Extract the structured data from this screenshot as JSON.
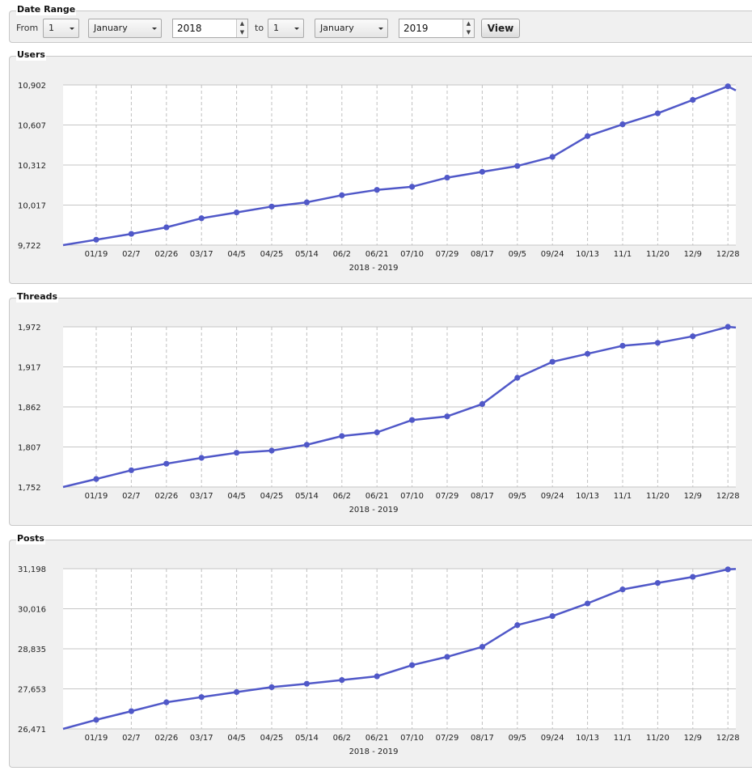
{
  "date_range": {
    "legend": "Date Range",
    "from_label": "From",
    "from_day": "1",
    "from_month": "January",
    "from_year": "2018",
    "to_label": "to",
    "to_day": "1",
    "to_month": "January",
    "to_year": "2019",
    "view_label": "View",
    "spin_up": "▲",
    "spin_down": "▼"
  },
  "x_ticks": [
    "01/19",
    "02/7",
    "02/26",
    "03/17",
    "04/5",
    "04/25",
    "05/14",
    "06/2",
    "06/21",
    "07/10",
    "07/29",
    "08/17",
    "09/5",
    "09/24",
    "10/13",
    "11/1",
    "11/20",
    "12/9",
    "12/28"
  ],
  "range_label": "2018 - 2019",
  "line_color": "#5058c8",
  "chart_data": [
    {
      "type": "line",
      "title": "Users",
      "xlabel": "2018 - 2019",
      "ylim": [
        9722,
        10902
      ],
      "y_ticks": [
        "10,902",
        "10,607",
        "10,312",
        "10,017",
        "9,722"
      ],
      "y_tick_values": [
        10902,
        10607,
        10312,
        10017,
        9722
      ],
      "grid": true,
      "points": [
        {
          "x": "01/01",
          "y": 9722
        },
        {
          "x": "01/19",
          "y": 9762
        },
        {
          "x": "02/7",
          "y": 9805
        },
        {
          "x": "02/26",
          "y": 9853
        },
        {
          "x": "03/17",
          "y": 9920
        },
        {
          "x": "04/5",
          "y": 9963
        },
        {
          "x": "04/25",
          "y": 10006
        },
        {
          "x": "05/14",
          "y": 10037
        },
        {
          "x": "06/2",
          "y": 10090
        },
        {
          "x": "06/21",
          "y": 10129
        },
        {
          "x": "07/10",
          "y": 10152
        },
        {
          "x": "07/29",
          "y": 10219
        },
        {
          "x": "08/17",
          "y": 10262
        },
        {
          "x": "09/5",
          "y": 10305
        },
        {
          "x": "09/24",
          "y": 10372
        },
        {
          "x": "10/13",
          "y": 10525
        },
        {
          "x": "11/1",
          "y": 10612
        },
        {
          "x": "11/20",
          "y": 10693
        },
        {
          "x": "12/9",
          "y": 10792
        },
        {
          "x": "12/28",
          "y": 10892
        },
        {
          "x": "12/31",
          "y": 10862
        }
      ],
      "markers": [
        "01/19",
        "02/7",
        "02/26",
        "03/17",
        "04/5",
        "04/25",
        "05/14",
        "06/2",
        "06/21",
        "07/10",
        "07/29",
        "08/17",
        "09/5",
        "09/24",
        "10/13",
        "11/1",
        "11/20",
        "12/9",
        "12/28"
      ]
    },
    {
      "type": "line",
      "title": "Threads",
      "xlabel": "2018 - 2019",
      "ylim": [
        1752,
        1972
      ],
      "y_ticks": [
        "1,972",
        "1,917",
        "1,862",
        "1,807",
        "1,752"
      ],
      "y_tick_values": [
        1972,
        1917,
        1862,
        1807,
        1752
      ],
      "grid": true,
      "points": [
        {
          "x": "01/01",
          "y": 1752
        },
        {
          "x": "01/19",
          "y": 1763
        },
        {
          "x": "02/7",
          "y": 1775
        },
        {
          "x": "02/26",
          "y": 1784
        },
        {
          "x": "03/17",
          "y": 1792
        },
        {
          "x": "04/5",
          "y": 1799
        },
        {
          "x": "04/25",
          "y": 1802
        },
        {
          "x": "05/14",
          "y": 1810
        },
        {
          "x": "06/2",
          "y": 1822
        },
        {
          "x": "06/21",
          "y": 1827
        },
        {
          "x": "07/10",
          "y": 1844
        },
        {
          "x": "07/29",
          "y": 1849
        },
        {
          "x": "08/17",
          "y": 1866
        },
        {
          "x": "09/5",
          "y": 1902
        },
        {
          "x": "09/24",
          "y": 1924
        },
        {
          "x": "10/13",
          "y": 1935
        },
        {
          "x": "11/1",
          "y": 1946
        },
        {
          "x": "11/20",
          "y": 1950
        },
        {
          "x": "12/9",
          "y": 1959
        },
        {
          "x": "12/28",
          "y": 1972
        },
        {
          "x": "12/31",
          "y": 1971
        }
      ],
      "markers": [
        "01/19",
        "02/7",
        "02/26",
        "03/17",
        "04/5",
        "04/25",
        "05/14",
        "06/2",
        "06/21",
        "07/10",
        "07/29",
        "08/17",
        "09/5",
        "09/24",
        "10/13",
        "11/1",
        "11/20",
        "12/9",
        "12/28"
      ]
    },
    {
      "type": "line",
      "title": "Posts",
      "xlabel": "2018 - 2019",
      "ylim": [
        26471,
        31198
      ],
      "y_ticks": [
        "31,198",
        "30,016",
        "28,835",
        "27,653",
        "26,471"
      ],
      "y_tick_values": [
        31198,
        30016,
        28835,
        27653,
        26471
      ],
      "grid": true,
      "points": [
        {
          "x": "01/01",
          "y": 26471
        },
        {
          "x": "01/19",
          "y": 26738
        },
        {
          "x": "02/7",
          "y": 26994
        },
        {
          "x": "02/26",
          "y": 27256
        },
        {
          "x": "03/17",
          "y": 27410
        },
        {
          "x": "04/5",
          "y": 27558
        },
        {
          "x": "04/25",
          "y": 27702
        },
        {
          "x": "05/14",
          "y": 27804
        },
        {
          "x": "06/2",
          "y": 27913
        },
        {
          "x": "06/21",
          "y": 28022
        },
        {
          "x": "07/10",
          "y": 28352
        },
        {
          "x": "07/29",
          "y": 28597
        },
        {
          "x": "08/17",
          "y": 28892
        },
        {
          "x": "09/5",
          "y": 29533
        },
        {
          "x": "09/24",
          "y": 29800
        },
        {
          "x": "10/13",
          "y": 30173
        },
        {
          "x": "11/1",
          "y": 30586
        },
        {
          "x": "11/20",
          "y": 30777
        },
        {
          "x": "12/9",
          "y": 30958
        },
        {
          "x": "12/28",
          "y": 31178
        },
        {
          "x": "12/31",
          "y": 31188
        }
      ],
      "markers": [
        "01/19",
        "02/7",
        "02/26",
        "03/17",
        "04/5",
        "04/25",
        "05/14",
        "06/2",
        "06/21",
        "07/10",
        "07/29",
        "08/17",
        "09/5",
        "09/24",
        "10/13",
        "11/1",
        "11/20",
        "12/9",
        "12/28"
      ]
    }
  ]
}
